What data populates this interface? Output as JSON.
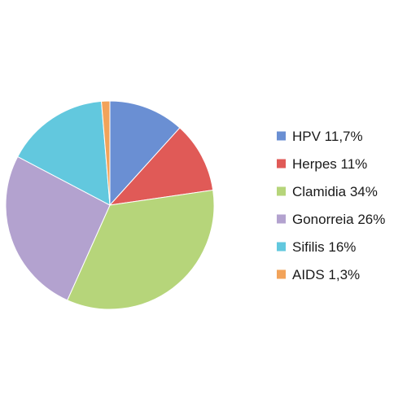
{
  "chart_data": {
    "type": "pie",
    "title": "",
    "legend_position": "right",
    "slices": [
      {
        "label": "HPV 11,7%",
        "name": "HPV",
        "value": 11.7,
        "color": "#6a8fd3"
      },
      {
        "label": "Herpes 11%",
        "name": "Herpes",
        "value": 11,
        "color": "#e05a57"
      },
      {
        "label": "Clamidia 34%",
        "name": "Clamidia",
        "value": 34,
        "color": "#b6d57a"
      },
      {
        "label": "Gonorreia 26%",
        "name": "Gonorreia",
        "value": 26,
        "color": "#b3a2cf"
      },
      {
        "label": "Sifilis 16%",
        "name": "Sifilis",
        "value": 16,
        "color": "#62c8de"
      },
      {
        "label": "AIDS 1,3%",
        "name": "AIDS",
        "value": 1.3,
        "color": "#f2a35a"
      }
    ]
  }
}
